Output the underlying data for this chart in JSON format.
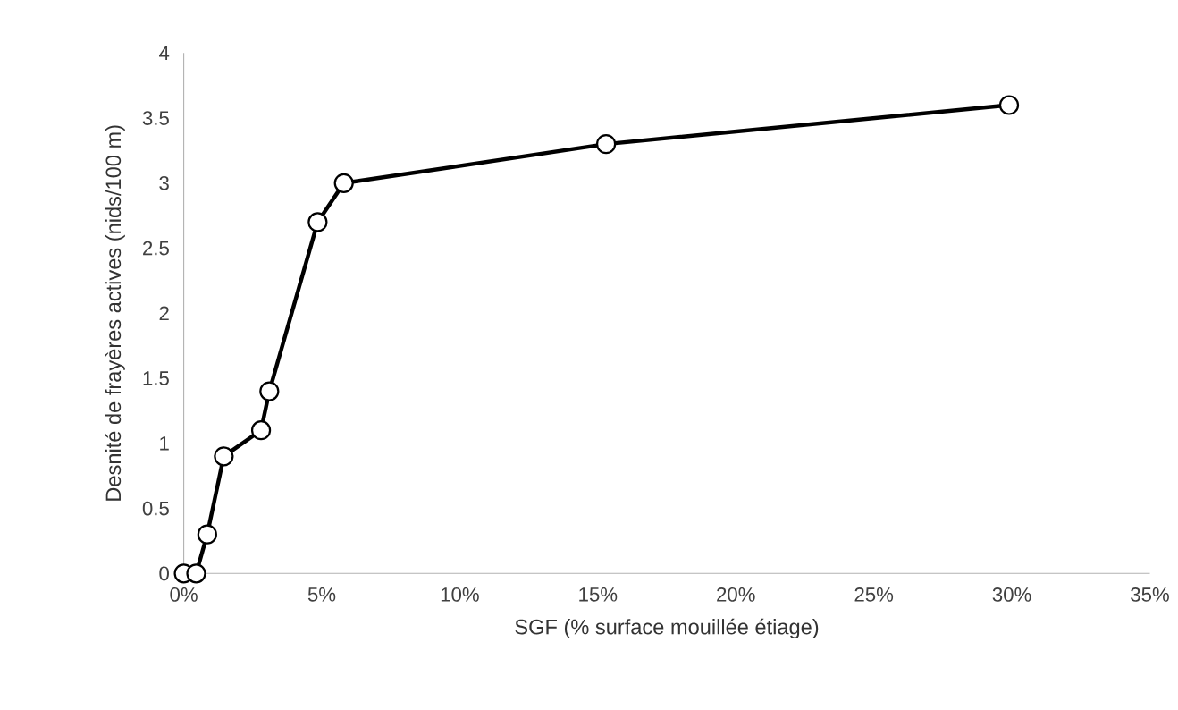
{
  "chart_data": {
    "type": "line",
    "xlabel": "SGF (% surface mouillée étiage)",
    "ylabel": "Desnité de frayères actives (nids/100 m)",
    "x": [
      0,
      0.45,
      0.85,
      1.45,
      2.8,
      3.1,
      4.85,
      5.8,
      15.3,
      29.9
    ],
    "series": [
      {
        "color": "#000000",
        "values": [
          0,
          0,
          0.3,
          0.9,
          1.1,
          1.4,
          2.7,
          3.0,
          3.3,
          3.6
        ]
      }
    ],
    "xlim": [
      0,
      35
    ],
    "ylim": [
      0,
      4
    ],
    "xticks": [
      {
        "value": 0,
        "label": "0%"
      },
      {
        "value": 5,
        "label": "5%"
      },
      {
        "value": 10,
        "label": "10%"
      },
      {
        "value": 15,
        "label": "15%"
      },
      {
        "value": 20,
        "label": "20%"
      },
      {
        "value": 25,
        "label": "25%"
      },
      {
        "value": 30,
        "label": "30%"
      },
      {
        "value": 35,
        "label": "35%"
      }
    ],
    "yticks": [
      0,
      0.5,
      1,
      1.5,
      2,
      2.5,
      3,
      3.5,
      4
    ],
    "marker": "circle",
    "line_style": "solid"
  }
}
